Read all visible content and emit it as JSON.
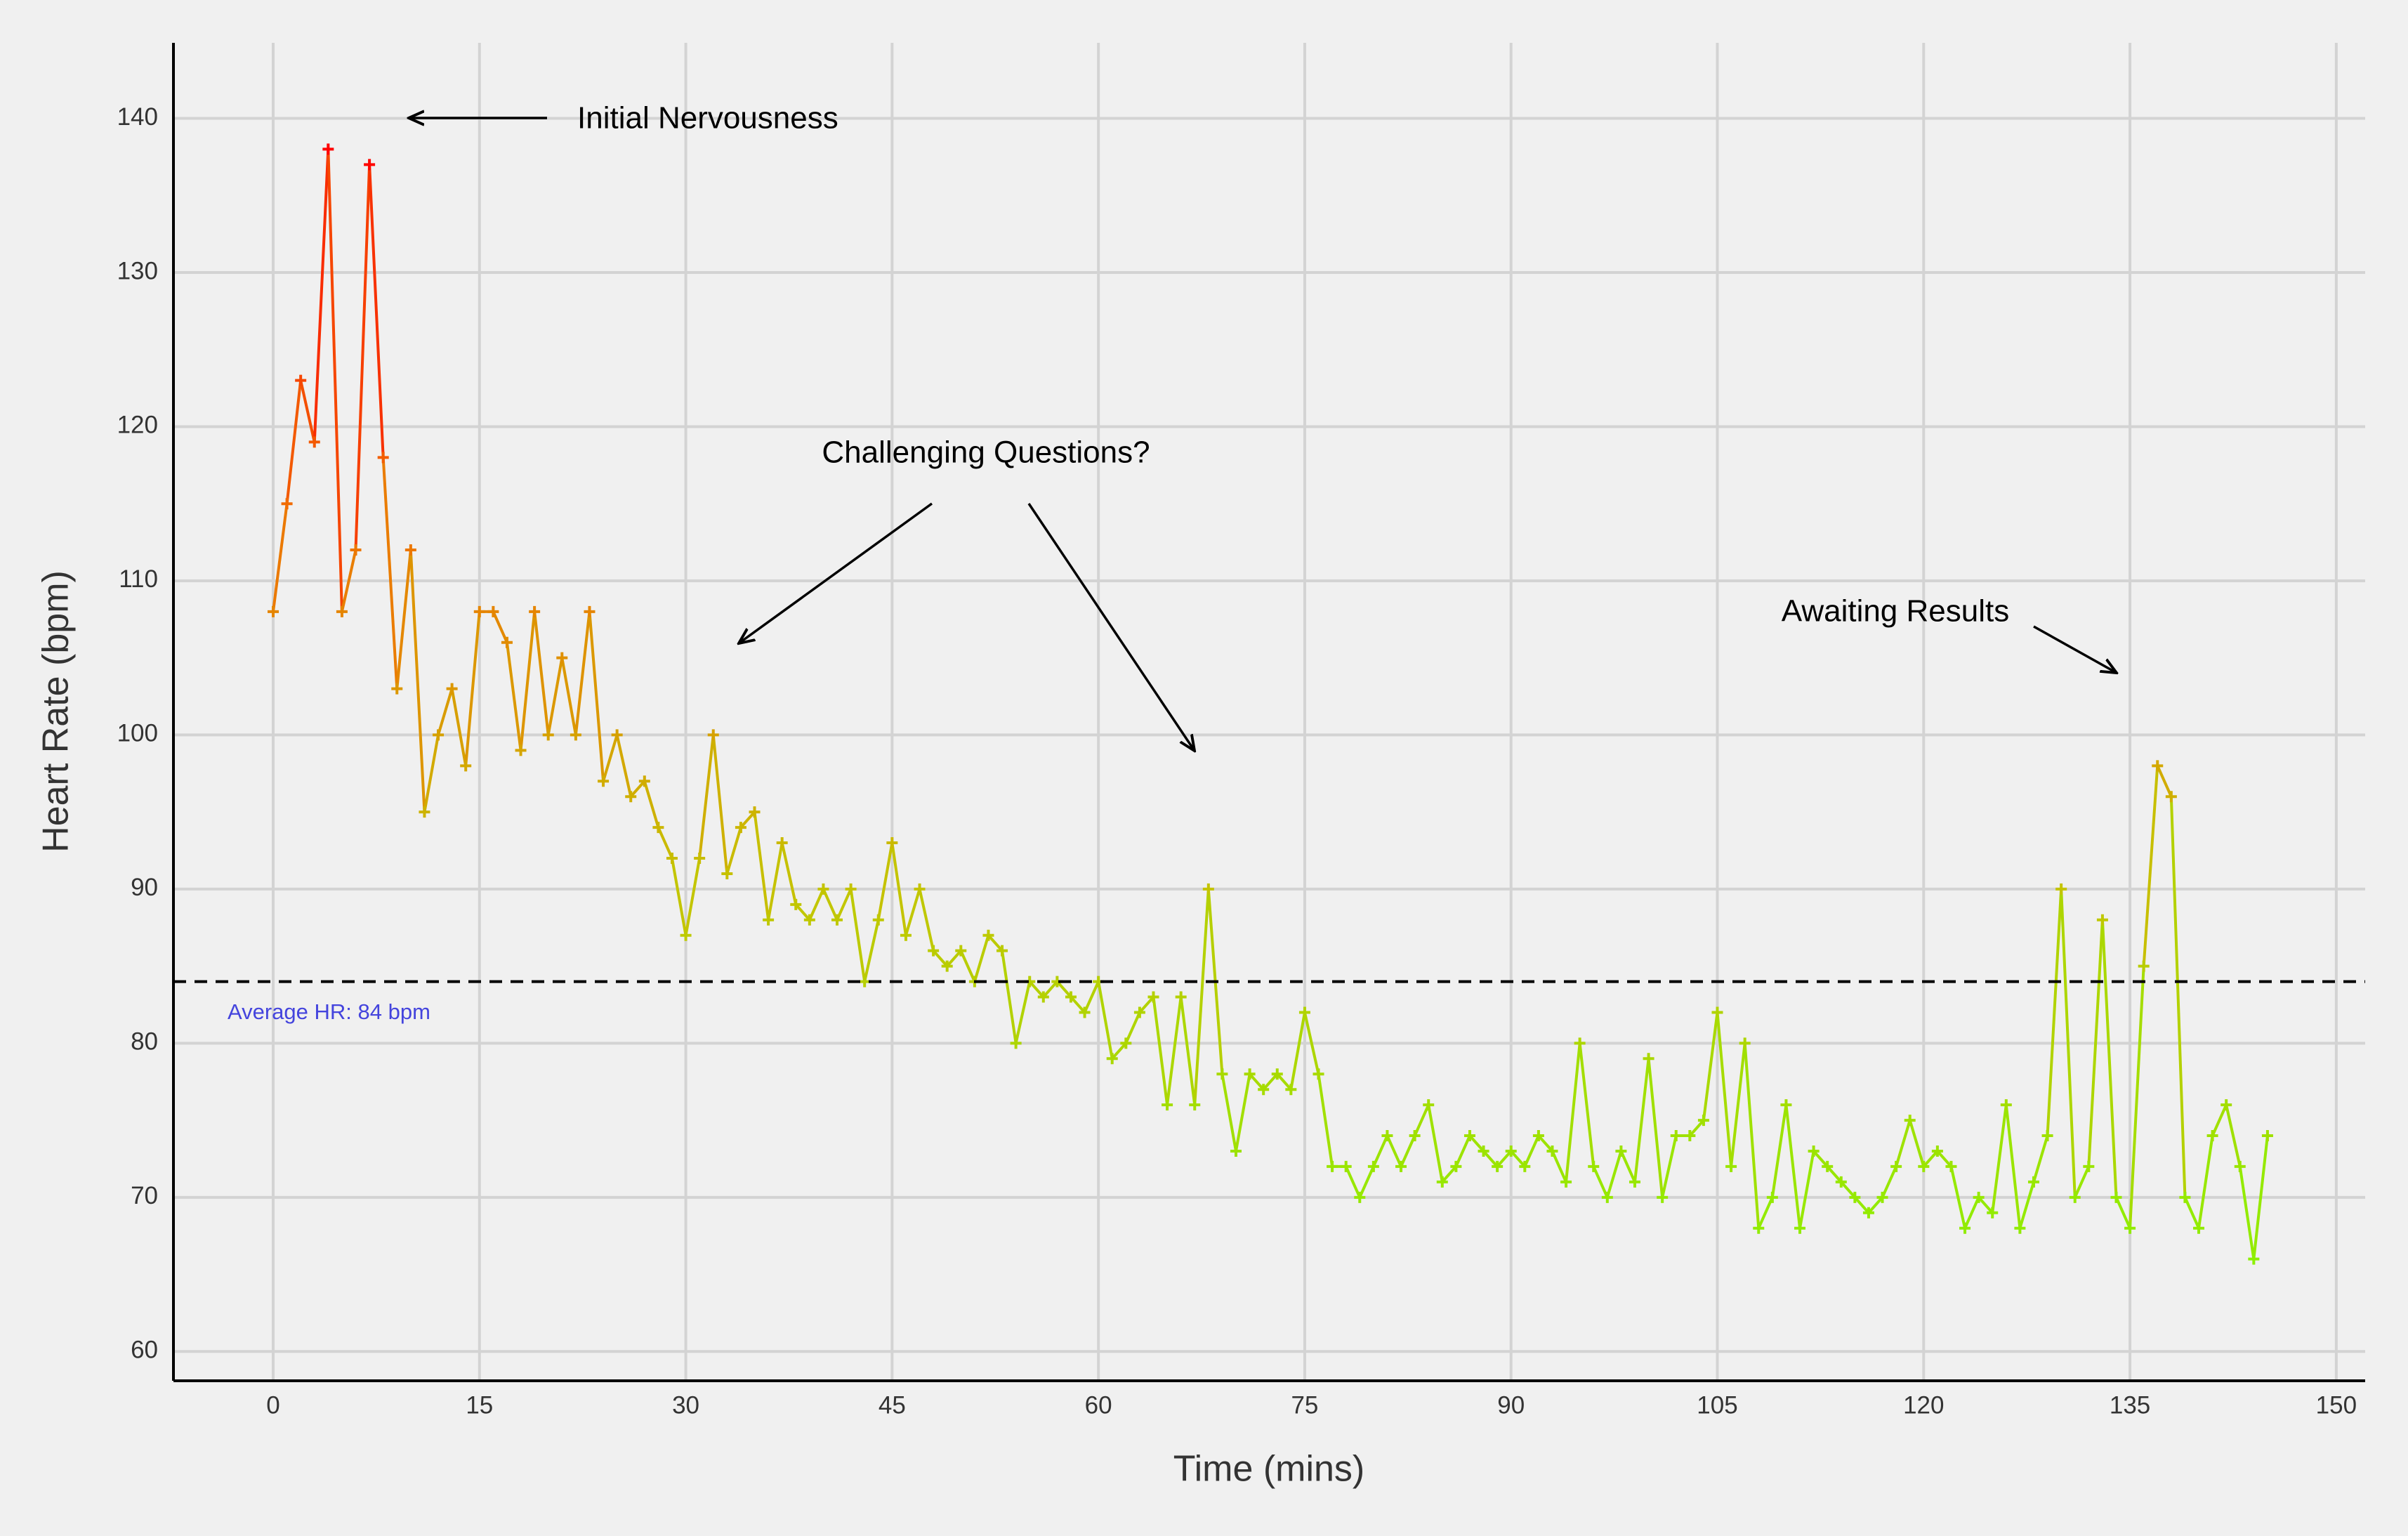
{
  "chart_data": {
    "type": "line",
    "x_label": "Time (mins)",
    "y_label": "Heart Rate (bpm)",
    "x": [
      0,
      1,
      2,
      3,
      4,
      5,
      6,
      7,
      8,
      9,
      10,
      11,
      12,
      13,
      14,
      15,
      16,
      17,
      18,
      19,
      20,
      21,
      22,
      23,
      24,
      25,
      26,
      27,
      28,
      29,
      30,
      31,
      32,
      33,
      34,
      35,
      36,
      37,
      38,
      39,
      40,
      41,
      42,
      43,
      44,
      45,
      46,
      47,
      48,
      49,
      50,
      51,
      52,
      53,
      54,
      55,
      56,
      57,
      58,
      59,
      60,
      61,
      62,
      63,
      64,
      65,
      66,
      67,
      68,
      69,
      70,
      71,
      72,
      73,
      74,
      75,
      76,
      77,
      78,
      79,
      80,
      81,
      82,
      83,
      84,
      85,
      86,
      87,
      88,
      89,
      90,
      91,
      92,
      93,
      94,
      95,
      96,
      97,
      98,
      99,
      100,
      101,
      102,
      103,
      104,
      105,
      106,
      107,
      108,
      109,
      110,
      111,
      112,
      113,
      114,
      115,
      116,
      117,
      118,
      119,
      120,
      121,
      122,
      123,
      124,
      125,
      126,
      127,
      128,
      129,
      130,
      131,
      132,
      133,
      134,
      135,
      136,
      137,
      138,
      139,
      140,
      141,
      142,
      143,
      144,
      145
    ],
    "values": [
      108,
      115,
      123,
      119,
      138,
      108,
      112,
      137,
      118,
      103,
      112,
      95,
      100,
      103,
      98,
      108,
      108,
      106,
      99,
      108,
      100,
      105,
      100,
      108,
      97,
      100,
      96,
      97,
      94,
      92,
      87,
      92,
      100,
      91,
      94,
      95,
      88,
      93,
      89,
      88,
      90,
      88,
      90,
      84,
      88,
      93,
      87,
      90,
      86,
      85,
      86,
      84,
      87,
      86,
      80,
      84,
      83,
      84,
      83,
      82,
      84,
      79,
      80,
      82,
      83,
      76,
      83,
      76,
      90,
      78,
      73,
      78,
      77,
      78,
      77,
      82,
      78,
      72,
      72,
      70,
      72,
      74,
      72,
      74,
      76,
      71,
      72,
      74,
      73,
      72,
      73,
      72,
      74,
      73,
      71,
      80,
      72,
      70,
      73,
      71,
      79,
      70,
      74,
      74,
      75,
      82,
      72,
      80,
      68,
      70,
      76,
      68,
      73,
      72,
      71,
      70,
      69,
      70,
      72,
      75,
      72,
      73,
      72,
      68,
      70,
      69,
      76,
      68,
      71,
      74,
      90,
      70,
      72,
      88,
      70,
      68,
      85,
      98,
      96,
      70,
      68,
      74,
      76,
      72,
      66,
      74
    ],
    "color_stops": [
      "#8cf000",
      "#c4c400",
      "#f07000",
      "#ff0000"
    ],
    "xlim": [
      -7.25,
      152.1
    ],
    "ylim": [
      58.1,
      144.9
    ],
    "xticks": [
      0,
      15,
      30,
      45,
      60,
      75,
      90,
      105,
      120,
      135,
      150
    ],
    "yticks": [
      60,
      70,
      80,
      90,
      100,
      110,
      120,
      130,
      140
    ],
    "grid": true,
    "average": 84,
    "average_label": "Average HR: 84 bpm",
    "annotations": [
      "Initial Nervousness",
      "Challenging Questions?",
      "Awaiting Results"
    ]
  }
}
